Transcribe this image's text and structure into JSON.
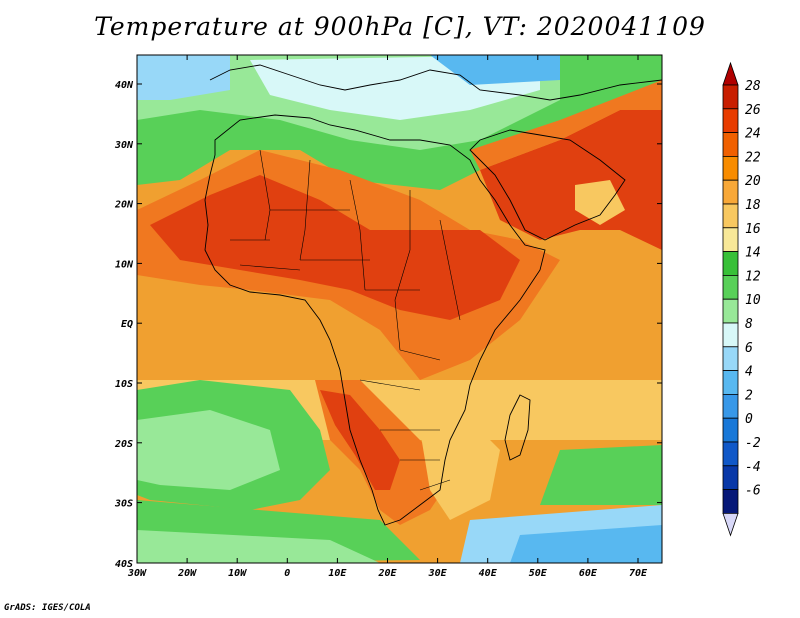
{
  "title": "Temperature at 900hPa [C], VT: 2020041109",
  "credit": "GrADS: IGES/COLA",
  "lat_labels": [
    "40N",
    "30N",
    "20N",
    "10N",
    "EQ",
    "10S",
    "20S",
    "30S",
    "40S"
  ],
  "lon_labels": [
    "30W",
    "20W",
    "10W",
    "0",
    "10E",
    "20E",
    "30E",
    "40E",
    "50E",
    "60E",
    "70E"
  ],
  "colorbar": {
    "labels": [
      "28",
      "26",
      "24",
      "22",
      "20",
      "18",
      "16",
      "14",
      "12",
      "10",
      "8",
      "6",
      "4",
      "2",
      "0",
      "-2",
      "-4",
      "-6"
    ],
    "colors_top_to_bottom": [
      "#c81e00",
      "#e83c00",
      "#f06000",
      "#f88c00",
      "#f8a838",
      "#f8c860",
      "#f8e898",
      "#38c038",
      "#58d058",
      "#98e898",
      "#d8f8f8",
      "#98d8f8",
      "#58b8f0",
      "#3898e8",
      "#1878d8",
      "#1058c8",
      "#0838a8",
      "#061878"
    ],
    "arrow_colors": {
      "top": "#b00000",
      "bottom": "#d8d8f8"
    }
  },
  "map": {
    "ocean_base": "#f0a030",
    "land_colors": {
      "hot": "#e04010",
      "warm": "#f07820",
      "mild": "#f8a838",
      "cool": "#f8d070"
    },
    "cool_zones": [
      "#38c038",
      "#58d058",
      "#98e898",
      "#d8f8f8"
    ],
    "southern_ocean": [
      "#58b8f0",
      "#98d8f8"
    ]
  }
}
